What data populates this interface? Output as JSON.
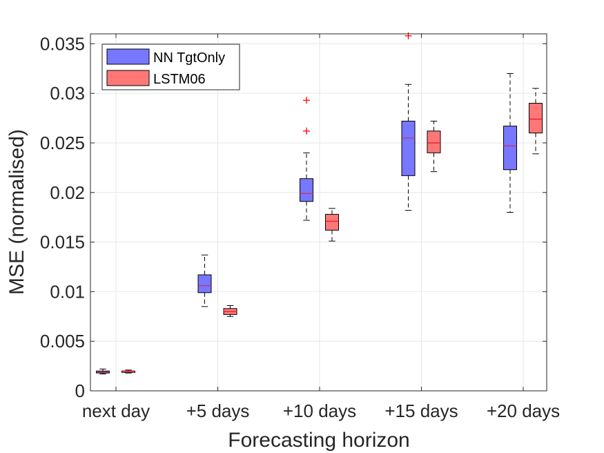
{
  "chart_data": {
    "type": "box",
    "xlabel": "Forecasting horizon",
    "ylabel": "MSE (normalised)",
    "ylim": [
      0,
      0.036
    ],
    "yticks": [
      0,
      0.005,
      0.01,
      0.015,
      0.02,
      0.025,
      0.03,
      0.035
    ],
    "ytick_labels": [
      "0",
      "0.005",
      "0.01",
      "0.015",
      "0.02",
      "0.025",
      "0.03",
      "0.035"
    ],
    "grid": true,
    "legend_position": "top-left",
    "categories": [
      "next day",
      "+5 days",
      "+10 days",
      "+15 days",
      "+20 days"
    ],
    "series": [
      {
        "name": "NN TgtOnly",
        "color": "#7777ff",
        "median_color": "#c8325a",
        "boxes": [
          {
            "whisker_low": 0.0017,
            "q1": 0.0018,
            "median": 0.0019,
            "q3": 0.002,
            "whisker_high": 0.0022,
            "outliers": []
          },
          {
            "whisker_low": 0.0085,
            "q1": 0.0099,
            "median": 0.0106,
            "q3": 0.0117,
            "whisker_high": 0.0137,
            "outliers": []
          },
          {
            "whisker_low": 0.0172,
            "q1": 0.0191,
            "median": 0.0199,
            "q3": 0.0214,
            "whisker_high": 0.024,
            "outliers": [
              0.0262,
              0.0293
            ]
          },
          {
            "whisker_low": 0.0182,
            "q1": 0.0217,
            "median": 0.0255,
            "q3": 0.0272,
            "whisker_high": 0.0309,
            "outliers": [
              0.0358
            ]
          },
          {
            "whisker_low": 0.018,
            "q1": 0.0223,
            "median": 0.0247,
            "q3": 0.0267,
            "whisker_high": 0.032,
            "outliers": []
          }
        ]
      },
      {
        "name": "LSTM06",
        "color": "#ff7777",
        "median_color": "#e0162b",
        "boxes": [
          {
            "whisker_low": 0.0018,
            "q1": 0.0019,
            "median": 0.002,
            "q3": 0.002,
            "whisker_high": 0.0021,
            "outliers": []
          },
          {
            "whisker_low": 0.0075,
            "q1": 0.0077,
            "median": 0.008,
            "q3": 0.0083,
            "whisker_high": 0.0086,
            "outliers": []
          },
          {
            "whisker_low": 0.0151,
            "q1": 0.0162,
            "median": 0.0171,
            "q3": 0.0178,
            "whisker_high": 0.0184,
            "outliers": []
          },
          {
            "whisker_low": 0.0221,
            "q1": 0.024,
            "median": 0.025,
            "q3": 0.0262,
            "whisker_high": 0.0272,
            "outliers": []
          },
          {
            "whisker_low": 0.0239,
            "q1": 0.026,
            "median": 0.0274,
            "q3": 0.029,
            "whisker_high": 0.0305,
            "outliers": []
          }
        ]
      }
    ]
  }
}
